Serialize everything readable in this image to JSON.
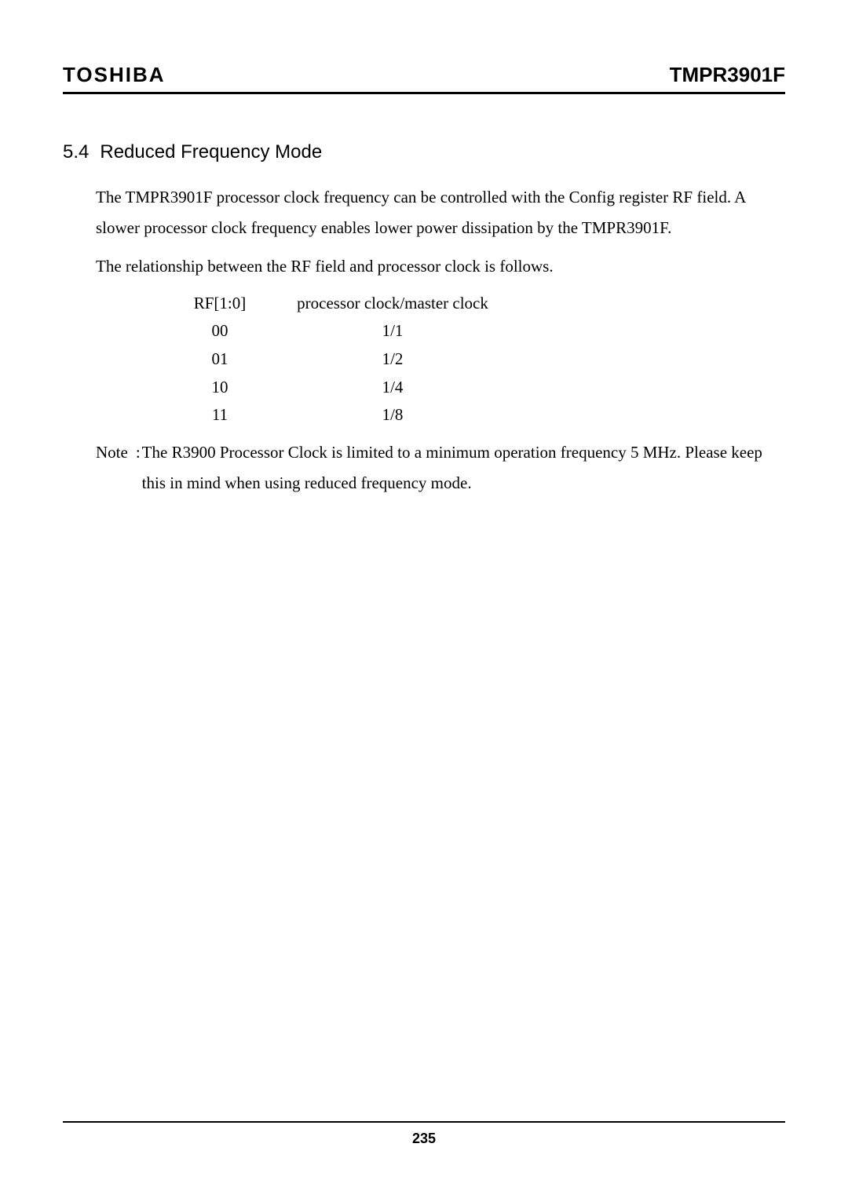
{
  "header": {
    "brand": "TOSHIBA",
    "doc_code": "TMPR3901F"
  },
  "section": {
    "number": "5.4",
    "title": "Reduced Frequency Mode"
  },
  "paragraphs": {
    "p1": "The TMPR3901F processor clock frequency can be controlled with the Config register RF field. A slower processor clock frequency enables lower power dissipation by the TMPR3901F.",
    "p2": "The relationship between the RF field and processor clock is follows."
  },
  "rf_table": {
    "headers": {
      "col1": "RF[1:0]",
      "col2": "processor clock/master clock"
    },
    "rows": [
      {
        "rf": "00",
        "ratio": "1/1"
      },
      {
        "rf": "01",
        "ratio": "1/2"
      },
      {
        "rf": "10",
        "ratio": "1/4"
      },
      {
        "rf": "11",
        "ratio": "1/8"
      }
    ]
  },
  "note": {
    "label": "Note",
    "colon": ":",
    "text": "The R3900 Processor Clock is limited to a minimum operation frequency 5 MHz. Please keep this in mind when using reduced frequency mode."
  },
  "footer": {
    "page_number": "235"
  }
}
